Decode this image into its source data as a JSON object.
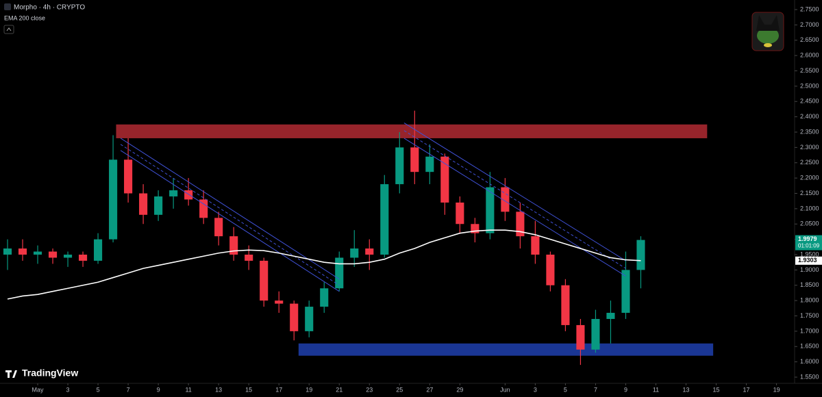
{
  "chart_data": {
    "type": "candlestick",
    "title": "Morpho · 4h · CRYPTO",
    "logo": "TradingView",
    "countdown": "01:01:09",
    "up_color": "#089981",
    "down_color": "#f23645",
    "x": [
      -2,
      -1,
      0,
      1,
      2,
      3,
      4,
      5,
      6,
      7,
      8,
      9,
      10,
      11,
      12,
      13,
      14,
      15,
      16,
      17,
      18,
      19,
      20,
      21,
      22,
      23,
      24,
      25,
      26,
      27,
      28,
      29,
      30,
      31,
      32,
      33,
      34,
      35,
      36,
      37,
      38,
      39,
      40
    ],
    "open": [
      1.95,
      1.97,
      1.95,
      1.96,
      1.94,
      1.95,
      1.93,
      2.0,
      2.26,
      2.15,
      2.08,
      2.14,
      2.16,
      2.13,
      2.07,
      2.01,
      1.95,
      1.93,
      1.8,
      1.79,
      1.7,
      1.78,
      1.84,
      1.94,
      1.97,
      1.95,
      2.18,
      2.3,
      2.22,
      2.27,
      2.12,
      2.05,
      2.02,
      2.17,
      2.09,
      2.01,
      1.95,
      1.85,
      1.72,
      1.64,
      1.74,
      1.76,
      1.9
    ],
    "high": [
      2.0,
      2.0,
      1.98,
      1.97,
      1.96,
      1.96,
      2.02,
      2.34,
      2.33,
      2.18,
      2.16,
      2.2,
      2.2,
      2.16,
      2.09,
      2.04,
      1.98,
      1.94,
      1.83,
      1.8,
      1.8,
      1.86,
      1.96,
      2.03,
      2.0,
      2.21,
      2.35,
      2.42,
      2.31,
      2.28,
      2.14,
      2.07,
      2.22,
      2.2,
      2.12,
      2.06,
      1.96,
      1.87,
      1.74,
      1.77,
      1.8,
      1.96,
      2.01
    ],
    "low": [
      1.9,
      1.93,
      1.92,
      1.92,
      1.91,
      1.91,
      1.92,
      1.99,
      2.12,
      2.05,
      2.06,
      2.1,
      2.11,
      2.05,
      1.98,
      1.93,
      1.9,
      1.78,
      1.76,
      1.67,
      1.68,
      1.76,
      1.83,
      1.91,
      1.9,
      1.94,
      2.15,
      2.18,
      2.18,
      2.08,
      2.02,
      1.99,
      2.0,
      2.06,
      1.97,
      1.92,
      1.83,
      1.7,
      1.59,
      1.63,
      1.66,
      1.74,
      1.84
    ],
    "close": [
      1.97,
      1.95,
      1.96,
      1.94,
      1.95,
      1.93,
      2.0,
      2.26,
      2.15,
      2.08,
      2.14,
      2.16,
      2.13,
      2.07,
      2.01,
      1.95,
      1.93,
      1.8,
      1.79,
      1.7,
      1.78,
      1.84,
      1.94,
      1.97,
      1.95,
      2.18,
      2.3,
      2.22,
      2.27,
      2.12,
      2.05,
      2.02,
      2.17,
      2.09,
      2.01,
      1.95,
      1.85,
      1.72,
      1.64,
      1.74,
      1.76,
      1.9,
      1.9979
    ],
    "indicator": {
      "name": "EMA 200 close",
      "color": "#ffffff",
      "values": [
        1.805,
        1.815,
        1.82,
        1.83,
        1.84,
        1.85,
        1.86,
        1.875,
        1.89,
        1.905,
        1.915,
        1.925,
        1.935,
        1.945,
        1.955,
        1.962,
        1.965,
        1.963,
        1.955,
        1.945,
        1.935,
        1.925,
        1.92,
        1.92,
        1.925,
        1.935,
        1.955,
        1.97,
        1.99,
        2.005,
        2.02,
        2.027,
        2.03,
        2.03,
        2.025,
        2.015,
        2.0,
        1.985,
        1.97,
        1.955,
        1.94,
        1.933,
        1.9303
      ]
    },
    "zones": [
      {
        "x": [
          5.2,
          44.4
        ],
        "y": [
          2.33,
          2.375
        ],
        "color": "#b22a33"
      },
      {
        "x": [
          17.3,
          44.8
        ],
        "y": [
          1.62,
          1.66
        ],
        "color": "#1e3fae"
      }
    ],
    "channels": [
      {
        "x": [
          5.5,
          20
        ],
        "y_upper": [
          2.33,
          1.87
        ],
        "y_lower": [
          2.29,
          1.83
        ],
        "color": "#3f51d6"
      },
      {
        "x": [
          24.3,
          39
        ],
        "y_upper": [
          2.38,
          1.93
        ],
        "y_lower": [
          2.33,
          1.88
        ],
        "color": "#3f51d6"
      }
    ],
    "xlim": [
      -2.5,
      50.2
    ],
    "ylim": [
      1.55,
      2.75
    ],
    "xticks": [
      {
        "value": 0,
        "label": "May"
      },
      {
        "value": 2,
        "label": "3"
      },
      {
        "value": 4,
        "label": "5"
      },
      {
        "value": 6,
        "label": "7"
      },
      {
        "value": 8,
        "label": "9"
      },
      {
        "value": 10,
        "label": "11"
      },
      {
        "value": 12,
        "label": "13"
      },
      {
        "value": 14,
        "label": "15"
      },
      {
        "value": 16,
        "label": "17"
      },
      {
        "value": 18,
        "label": "19"
      },
      {
        "value": 20,
        "label": "21"
      },
      {
        "value": 22,
        "label": "23"
      },
      {
        "value": 24,
        "label": "25"
      },
      {
        "value": 26,
        "label": "27"
      },
      {
        "value": 28,
        "label": "29"
      },
      {
        "value": 31,
        "label": "Jun"
      },
      {
        "value": 33,
        "label": "3"
      },
      {
        "value": 35,
        "label": "5"
      },
      {
        "value": 37,
        "label": "7"
      },
      {
        "value": 39,
        "label": "9"
      },
      {
        "value": 41,
        "label": "11"
      },
      {
        "value": 43,
        "label": "13"
      },
      {
        "value": 45,
        "label": "15"
      },
      {
        "value": 47,
        "label": "17"
      },
      {
        "value": 49,
        "label": "19"
      }
    ],
    "yticks": [
      {
        "value": 1.55,
        "label": "1.5500"
      },
      {
        "value": 1.6,
        "label": "1.6000"
      },
      {
        "value": 1.65,
        "label": "1.6500"
      },
      {
        "value": 1.7,
        "label": "1.7000"
      },
      {
        "value": 1.75,
        "label": "1.7500"
      },
      {
        "value": 1.8,
        "label": "1.8000"
      },
      {
        "value": 1.85,
        "label": "1.8500"
      },
      {
        "value": 1.9,
        "label": "1.9000"
      },
      {
        "value": 1.95,
        "label": "1.9500"
      },
      {
        "value": 2.0,
        "label": "2.0000"
      },
      {
        "value": 2.05,
        "label": "2.0500"
      },
      {
        "value": 2.1,
        "label": "2.1000"
      },
      {
        "value": 2.15,
        "label": "2.1500"
      },
      {
        "value": 2.2,
        "label": "2.2000"
      },
      {
        "value": 2.25,
        "label": "2.2500"
      },
      {
        "value": 2.3,
        "label": "2.3000"
      },
      {
        "value": 2.35,
        "label": "2.3500"
      },
      {
        "value": 2.4,
        "label": "2.4000"
      },
      {
        "value": 2.45,
        "label": "2.4500"
      },
      {
        "value": 2.5,
        "label": "2.5000"
      },
      {
        "value": 2.55,
        "label": "2.5500"
      },
      {
        "value": 2.6,
        "label": "2.6000"
      },
      {
        "value": 2.65,
        "label": "2.6500"
      },
      {
        "value": 2.7,
        "label": "2.7000"
      },
      {
        "value": 2.75,
        "label": "2.7500"
      }
    ]
  }
}
